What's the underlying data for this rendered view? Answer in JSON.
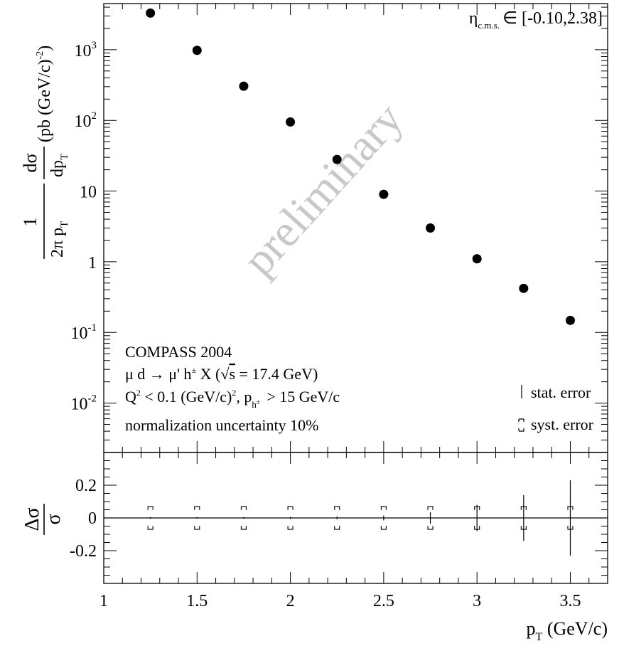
{
  "chart_data": {
    "type": "scatter",
    "log_y": true,
    "top_panel": {
      "ylim": [
        0.002,
        4500
      ],
      "y_tick_labels": [
        {
          "value": 0.01,
          "base": "10",
          "exp": "-2"
        },
        {
          "value": 0.1,
          "base": "10",
          "exp": "-1"
        },
        {
          "value": 1,
          "text": "1"
        },
        {
          "value": 10,
          "text": "10"
        },
        {
          "value": 100,
          "base": "10",
          "exp": "2"
        },
        {
          "value": 1000,
          "base": "10",
          "exp": "3"
        }
      ],
      "ylabel": {
        "num": "1",
        "den_a": "2π p",
        "den_sub": "T",
        "frac2_num": "dσ",
        "frac2_den": "dp",
        "frac2_den_sub": "T",
        "units": "(pb (GeV/c)",
        "units_exp": "-2",
        "units_close": ")"
      },
      "points": [
        {
          "x": 1.25,
          "y": 3300
        },
        {
          "x": 1.5,
          "y": 980
        },
        {
          "x": 1.75,
          "y": 305
        },
        {
          "x": 2.0,
          "y": 95
        },
        {
          "x": 2.25,
          "y": 28
        },
        {
          "x": 2.5,
          "y": 9.0
        },
        {
          "x": 2.75,
          "y": 3.0
        },
        {
          "x": 3.0,
          "y": 1.1
        },
        {
          "x": 3.25,
          "y": 0.42
        },
        {
          "x": 3.5,
          "y": 0.148
        }
      ]
    },
    "bottom_panel": {
      "ylim": [
        -0.4,
        0.4
      ],
      "y_ticks": [
        -0.2,
        0,
        0.2
      ],
      "y_tick_labels": [
        "-0.2",
        "0",
        "0.2"
      ],
      "ylabel": {
        "num": "Δσ",
        "den": "σ"
      },
      "points": [
        {
          "x": 1.25,
          "y": 0,
          "stat": 0.005,
          "syst": 0.07
        },
        {
          "x": 1.5,
          "y": 0,
          "stat": 0.005,
          "syst": 0.07
        },
        {
          "x": 1.75,
          "y": 0,
          "stat": 0.005,
          "syst": 0.07
        },
        {
          "x": 2.0,
          "y": 0,
          "stat": 0.006,
          "syst": 0.07
        },
        {
          "x": 2.25,
          "y": 0,
          "stat": 0.008,
          "syst": 0.07
        },
        {
          "x": 2.5,
          "y": 0,
          "stat": 0.015,
          "syst": 0.07
        },
        {
          "x": 2.75,
          "y": 0,
          "stat": 0.035,
          "syst": 0.07
        },
        {
          "x": 3.0,
          "y": 0,
          "stat": 0.08,
          "syst": 0.07
        },
        {
          "x": 3.25,
          "y": 0,
          "stat": 0.14,
          "syst": 0.07
        },
        {
          "x": 3.5,
          "y": 0,
          "stat": 0.23,
          "syst": 0.07
        }
      ]
    },
    "xlim": [
      1,
      3.7
    ],
    "x_ticks": [
      1,
      1.5,
      2,
      2.5,
      3,
      3.5
    ],
    "x_tick_labels": [
      "1",
      "1.5",
      "2",
      "2.5",
      "3",
      "3.5"
    ],
    "xlabel": {
      "main": "p",
      "sub": "T",
      "units": " (GeV/c)"
    },
    "eta_label": {
      "eta": "η",
      "sub": "c.m.s.",
      "range": "∈ [-0.10,2.38]"
    },
    "watermark": "preliminary",
    "annotations": {
      "line1": "COMPASS 2004",
      "line2": "μ d → μ' h",
      "line2_sup": "±",
      "line2_rest": " X (",
      "line2_sqrt": "√",
      "line2_s": "s",
      "line2_end": " = 17.4 GeV)",
      "line3_a": "Q",
      "line3_sup": "2",
      "line3_b": " < 0.1 (GeV/c)",
      "line3_sup2": "2",
      "line3_c": ", p",
      "line3_sub": "h",
      "line3_subsup": "±",
      "line3_d": " > 15 GeV/c",
      "line4": "normalization uncertainty 10%"
    },
    "legend": {
      "placement": "bottom-right",
      "stat": "stat. error",
      "syst": "syst. error"
    }
  }
}
